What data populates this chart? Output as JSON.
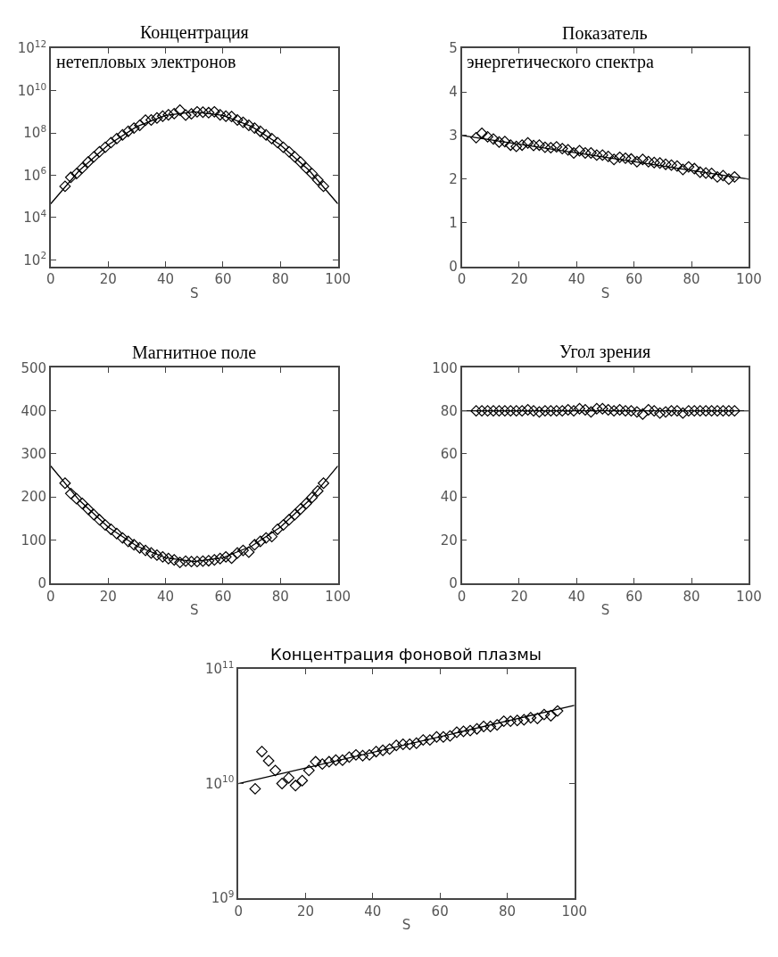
{
  "chart_data": [
    {
      "type": "scatter",
      "title": "Концентрация",
      "subtitle": "нетепловых электронов",
      "xlabel": "S",
      "log": "y",
      "xlim": [
        0,
        100
      ],
      "xticks": [
        0,
        20,
        40,
        60,
        80,
        100
      ],
      "ylim": [
        50,
        1000000000000.0
      ],
      "yticks": [
        {
          "value": 100,
          "label": "10$^{2}$"
        },
        {
          "value": 10000,
          "label": "10$^{4}$"
        },
        {
          "value": 1000000.0,
          "label": "10$^{6}$"
        },
        {
          "value": 100000000.0,
          "label": "10$^{8}$"
        },
        {
          "value": 10000000000.0,
          "label": "10$^{10}$"
        },
        {
          "value": 1000000000000.0,
          "label": "10$^{12}$"
        }
      ],
      "series": [
        {
          "type": "scatter",
          "marker": "diamond",
          "color": "#000000",
          "x": [
            5,
            7,
            9,
            11,
            13,
            15,
            17,
            19,
            21,
            23,
            25,
            27,
            29,
            31,
            33,
            35,
            37,
            39,
            41,
            43,
            45,
            47,
            49,
            51,
            53,
            55,
            57,
            59,
            61,
            63,
            65,
            67,
            69,
            71,
            73,
            75,
            77,
            79,
            81,
            83,
            85,
            87,
            89,
            91,
            93,
            95
          ],
          "values": [
            300000.0,
            800000.0,
            1200000.0,
            2200000.0,
            4200000.0,
            7400000.0,
            13000000.0,
            21000000.0,
            35000000.0,
            54000000.0,
            81000000.0,
            120000000.0,
            170000000.0,
            230000000.0,
            400000000.0,
            410000000.0,
            510000000.0,
            620000000.0,
            720000000.0,
            820000000.0,
            1200000000.0,
            700000000.0,
            800000000.0,
            1000000000.0,
            960000000.0,
            910000000.0,
            1000000000.0,
            720000000.0,
            620000000.0,
            600000000.0,
            410000000.0,
            320000000.0,
            230000000.0,
            170000000.0,
            120000000.0,
            81000000.0,
            54000000.0,
            35000000.0,
            21000000.0,
            13000000.0,
            7400000.0,
            4200000.0,
            2200000.0,
            1200000.0,
            600000.0,
            300000.0
          ]
        },
        {
          "type": "line",
          "marker": "none",
          "color": "#000000",
          "x": [
            0,
            10,
            20,
            30,
            40,
            50,
            60,
            70,
            80,
            90,
            100
          ],
          "values": [
            45000.0,
            1700000.0,
            27000000.0,
            200000000.0,
            680000000.0,
            1000000000.0,
            680000000.0,
            200000000.0,
            27000000.0,
            1700000.0,
            45000.0
          ]
        }
      ]
    },
    {
      "type": "scatter",
      "title": "Показатель",
      "subtitle": "энергетического спектра",
      "xlabel": "S",
      "xlim": [
        0,
        100
      ],
      "xticks": [
        0,
        20,
        40,
        60,
        80,
        100
      ],
      "ylim": [
        0,
        5
      ],
      "yticks": [
        0,
        1,
        2,
        3,
        4,
        5
      ],
      "series": [
        {
          "type": "scatter",
          "marker": "diamond",
          "color": "#000000",
          "x": [
            5,
            7,
            9,
            11,
            13,
            15,
            17,
            19,
            21,
            23,
            25,
            27,
            29,
            31,
            33,
            35,
            37,
            39,
            41,
            43,
            45,
            47,
            49,
            51,
            53,
            55,
            57,
            59,
            61,
            63,
            65,
            67,
            69,
            71,
            73,
            75,
            77,
            79,
            81,
            83,
            85,
            87,
            89,
            91,
            93,
            95
          ],
          "values": [
            2.95,
            3.05,
            2.97,
            2.92,
            2.85,
            2.86,
            2.78,
            2.75,
            2.78,
            2.83,
            2.77,
            2.78,
            2.73,
            2.72,
            2.74,
            2.7,
            2.67,
            2.6,
            2.65,
            2.6,
            2.6,
            2.55,
            2.55,
            2.52,
            2.45,
            2.5,
            2.48,
            2.46,
            2.4,
            2.45,
            2.4,
            2.38,
            2.37,
            2.34,
            2.32,
            2.3,
            2.22,
            2.28,
            2.24,
            2.16,
            2.14,
            2.13,
            2.05,
            2.08,
            2.0,
            2.05
          ]
        },
        {
          "type": "line",
          "marker": "none",
          "color": "#000000",
          "x": [
            0,
            100
          ],
          "values": [
            3.0,
            2.0
          ]
        }
      ]
    },
    {
      "type": "scatter",
      "title": "Магнитное поле",
      "xlabel": "S",
      "xlim": [
        0,
        100
      ],
      "xticks": [
        0,
        20,
        40,
        60,
        80,
        100
      ],
      "ylim": [
        0,
        500
      ],
      "yticks": [
        0,
        100,
        200,
        300,
        400,
        500
      ],
      "series": [
        {
          "type": "scatter",
          "marker": "diamond",
          "color": "#000000",
          "x": [
            5,
            7,
            9,
            11,
            13,
            15,
            17,
            19,
            21,
            23,
            25,
            27,
            29,
            31,
            33,
            35,
            37,
            39,
            41,
            43,
            45,
            47,
            49,
            51,
            53,
            55,
            57,
            59,
            61,
            63,
            65,
            67,
            69,
            71,
            73,
            75,
            77,
            79,
            81,
            83,
            85,
            87,
            89,
            91,
            93,
            95
          ],
          "values": [
            232,
            208,
            196,
            185,
            172,
            159,
            147,
            135,
            125,
            115,
            105,
            97,
            89,
            82,
            76,
            70,
            65,
            61,
            57,
            54,
            48,
            51,
            50,
            50,
            51,
            52,
            54,
            57,
            61,
            58,
            70,
            76,
            72,
            89,
            97,
            105,
            108,
            125,
            135,
            147,
            159,
            172,
            185,
            199,
            214,
            232
          ]
        },
        {
          "type": "line",
          "marker": "none",
          "color": "#000000",
          "x": [
            0,
            10,
            20,
            30,
            40,
            50,
            60,
            70,
            80,
            90,
            100
          ],
          "values": [
            272,
            192,
            130,
            86,
            59,
            50,
            59,
            86,
            130,
            192,
            272
          ]
        }
      ]
    },
    {
      "type": "scatter",
      "title": "Угол зрения",
      "xlabel": "S",
      "xlim": [
        0,
        100
      ],
      "xticks": [
        0,
        20,
        40,
        60,
        80,
        100
      ],
      "ylim": [
        0,
        100
      ],
      "yticks": [
        0,
        20,
        40,
        60,
        80,
        100
      ],
      "series": [
        {
          "type": "scatter",
          "marker": "diamond",
          "color": "#000000",
          "x": [
            5,
            7,
            9,
            11,
            13,
            15,
            17,
            19,
            21,
            23,
            25,
            27,
            29,
            31,
            33,
            35,
            37,
            39,
            41,
            43,
            45,
            47,
            49,
            51,
            53,
            55,
            57,
            59,
            61,
            63,
            65,
            67,
            69,
            71,
            73,
            75,
            77,
            79,
            81,
            83,
            85,
            87,
            89,
            91,
            93,
            95
          ],
          "values": [
            80,
            80,
            80,
            80,
            80,
            80,
            80,
            80,
            80,
            80.5,
            80,
            79.5,
            80,
            80,
            80,
            80,
            80.5,
            80,
            81,
            80.5,
            79.5,
            81,
            81,
            80.5,
            80,
            80.5,
            80,
            80,
            79.5,
            78.5,
            80.5,
            80,
            79,
            79.5,
            80,
            80,
            79,
            80,
            80,
            80,
            80,
            80,
            80,
            80,
            80,
            80
          ]
        },
        {
          "type": "line",
          "marker": "none",
          "color": "#000000",
          "x": [
            0,
            100
          ],
          "values": [
            80,
            80
          ]
        }
      ]
    },
    {
      "type": "scatter",
      "title": "Концентрация фоновой плазмы",
      "xlabel": "S",
      "log": "y",
      "xlim": [
        0,
        100
      ],
      "xticks": [
        0,
        20,
        40,
        60,
        80,
        100
      ],
      "ylim": [
        1000000000.0,
        100000000000.0
      ],
      "yticks": [
        {
          "value": 1000000000.0,
          "label": "10$^{9}$"
        },
        {
          "value": 10000000000.0,
          "label": "10$^{10}$"
        },
        {
          "value": 100000000000.0,
          "label": "10$^{11}$"
        }
      ],
      "series": [
        {
          "type": "scatter",
          "marker": "diamond",
          "color": "#000000",
          "x": [
            5,
            7,
            9,
            11,
            13,
            15,
            17,
            19,
            21,
            23,
            25,
            27,
            29,
            31,
            33,
            35,
            37,
            39,
            41,
            43,
            45,
            47,
            49,
            51,
            53,
            55,
            57,
            59,
            61,
            63,
            65,
            67,
            69,
            71,
            73,
            75,
            77,
            79,
            81,
            83,
            85,
            87,
            89,
            91,
            93,
            95
          ],
          "values": [
            9000000000.0,
            19000000000.0,
            15800000000.0,
            13000000000.0,
            10000000000.0,
            11200000000.0,
            9600000000.0,
            10600000000.0,
            13000000000.0,
            15500000000.0,
            14800000000.0,
            15500000000.0,
            16000000000.0,
            16000000000.0,
            17000000000.0,
            17800000000.0,
            17500000000.0,
            17800000000.0,
            19000000000.0,
            19500000000.0,
            20000000000.0,
            21500000000.0,
            22000000000.0,
            22000000000.0,
            22500000000.0,
            24000000000.0,
            24000000000.0,
            25500000000.0,
            25500000000.0,
            26000000000.0,
            28000000000.0,
            28500000000.0,
            29000000000.0,
            30000000000.0,
            31500000000.0,
            31500000000.0,
            32500000000.0,
            35000000000.0,
            35000000000.0,
            35500000000.0,
            36000000000.0,
            37500000000.0,
            37000000000.0,
            40000000000.0,
            39000000000.0,
            43000000000.0
          ]
        },
        {
          "type": "line",
          "marker": "none",
          "color": "#000000",
          "x": [
            0,
            100
          ],
          "values": [
            10000000000.0,
            48000000000.0
          ]
        }
      ]
    }
  ]
}
